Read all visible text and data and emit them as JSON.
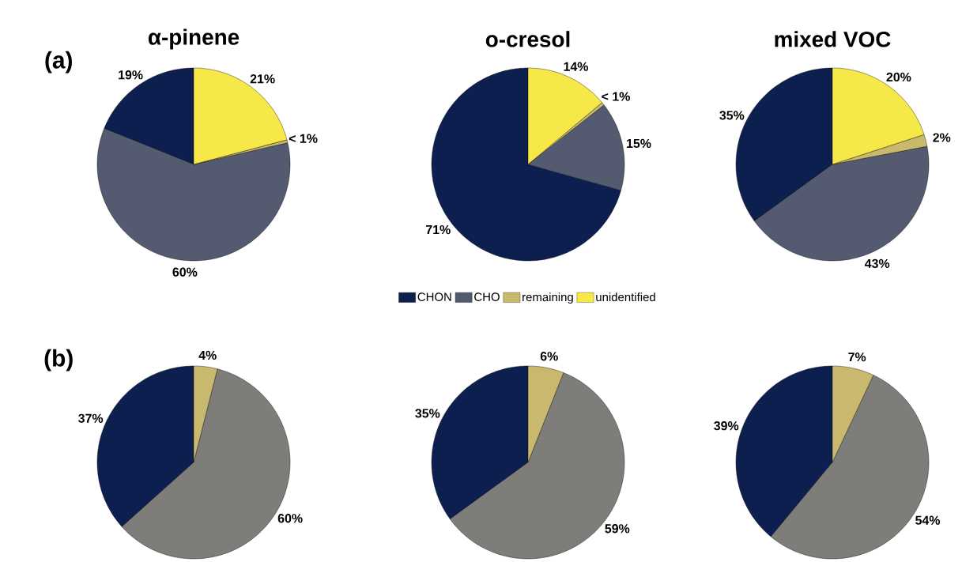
{
  "chart_data": [
    {
      "type": "pie",
      "title": "α-pinene",
      "annotations": [
        "(a)"
      ],
      "categories": [
        null,
        null,
        null,
        null
      ],
      "values": [
        19,
        60,
        0.5,
        21
      ],
      "value_labels": [
        "19%",
        "60%",
        "< 1%",
        "21%"
      ],
      "colors": [
        "#0d1f4f",
        "#545a70",
        "#c9b96a",
        "#f7e84a"
      ]
    },
    {
      "type": "pie",
      "title": "o-cresol",
      "legend": "bottom",
      "categories": [
        "CHON",
        "CHO",
        "remaining",
        "unidentified"
      ],
      "values": [
        71,
        15,
        0.5,
        14
      ],
      "value_labels": [
        "71%",
        "15%",
        "< 1%",
        "14%"
      ],
      "colors": [
        "#0d1f4f",
        "#545a70",
        "#c9b96a",
        "#f7e84a"
      ]
    },
    {
      "type": "pie",
      "title": "mixed VOC",
      "categories": [
        null,
        null,
        null,
        null
      ],
      "values": [
        35,
        43,
        2,
        20
      ],
      "value_labels": [
        "35%",
        "43%",
        "2%",
        "20%"
      ],
      "colors": [
        "#0d1f4f",
        "#545a70",
        "#c9b96a",
        "#f7e84a"
      ]
    },
    {
      "type": "pie",
      "annotations": [
        "(b)"
      ],
      "categories": [
        null,
        null,
        null
      ],
      "values": [
        37,
        60,
        4
      ],
      "value_labels": [
        "37%",
        "60%",
        "4%"
      ],
      "colors": [
        "#0d1f4f",
        "#7f7d7a",
        "#c8b96e"
      ]
    },
    {
      "type": "pie",
      "categories": [
        null,
        null,
        null
      ],
      "values": [
        35,
        59,
        6
      ],
      "value_labels": [
        "35%",
        "59%",
        "6%"
      ],
      "colors": [
        "#0d1f4f",
        "#7f7d7a",
        "#c8b96e"
      ]
    },
    {
      "type": "pie",
      "categories": [
        null,
        null,
        null
      ],
      "values": [
        39,
        54,
        7
      ],
      "value_labels": [
        "39%",
        "54%",
        "7%"
      ],
      "colors": [
        "#0d1f4f",
        "#7f7d7a",
        "#c8b96e"
      ]
    }
  ]
}
